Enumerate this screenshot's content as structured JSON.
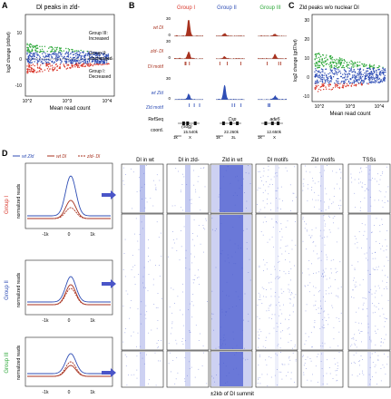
{
  "panels": {
    "A": {
      "letter": "A",
      "title": "Dl peaks in zld-",
      "ylabel": "log2 change (zld/wt)",
      "xlabel": "Mean read count",
      "xticks": [
        "10^2",
        "10^3",
        "10^4"
      ],
      "yticks": [
        "10",
        "0",
        "-10"
      ],
      "annotations": {
        "group3": [
          "Group III:",
          "Increased"
        ],
        "group2": [
          "Group II:",
          "Unchanged"
        ],
        "group1": [
          "Group I:",
          "Decreased"
        ]
      }
    },
    "B": {
      "letter": "B",
      "group_headers": [
        "Group I",
        "Group II",
        "Group III"
      ],
      "row_labels": [
        "wt Dl",
        "zld- Dl",
        "Dl motif",
        "wt Zld",
        "Zld motif",
        "RefSeq",
        "coord."
      ],
      "scale_top": [
        "30",
        "30",
        "30"
      ],
      "scale_zero": [
        "0",
        "0",
        "0"
      ],
      "gene_names": [
        "(sog)",
        "Csp",
        "ade5"
      ],
      "coords": [
        "15.540k",
        "22.260k",
        "12.650k"
      ],
      "coord_units": [
        [
          "1k",
          "X"
        ],
        [
          "1k",
          "3L"
        ],
        [
          "1k",
          "X"
        ]
      ]
    },
    "C": {
      "letter": "C",
      "title": "Zld peaks w/o nuclear Dl",
      "ylabel": "log2 change (gd7/wt)",
      "xlabel": "Mean read count",
      "xticks": [
        "10^2",
        "10^3",
        "10^4"
      ],
      "yticks": [
        "30",
        "20",
        "10",
        "0",
        "-10"
      ]
    },
    "D": {
      "letter": "D",
      "legend": [
        "wt Zld",
        "wt Dl",
        "zld- Dl"
      ],
      "groups": [
        "Group I",
        "Group II",
        "Group III"
      ],
      "ylabel": "normalized reads",
      "xticks": [
        "-1k",
        "0",
        "1k"
      ],
      "heatmap_columns": [
        "Dl in wt",
        "Dl in zld-",
        "Zld in wt",
        "Dl motifs",
        "Zld motifs",
        "TSSs"
      ],
      "footer": "±2kb of Dl summit"
    }
  },
  "colors": {
    "red": "#d9362a",
    "blue": "#2f4eb5",
    "green": "#2ea83a",
    "darkred": "#a8321f",
    "heat_blue": "#4a5bd0"
  }
}
